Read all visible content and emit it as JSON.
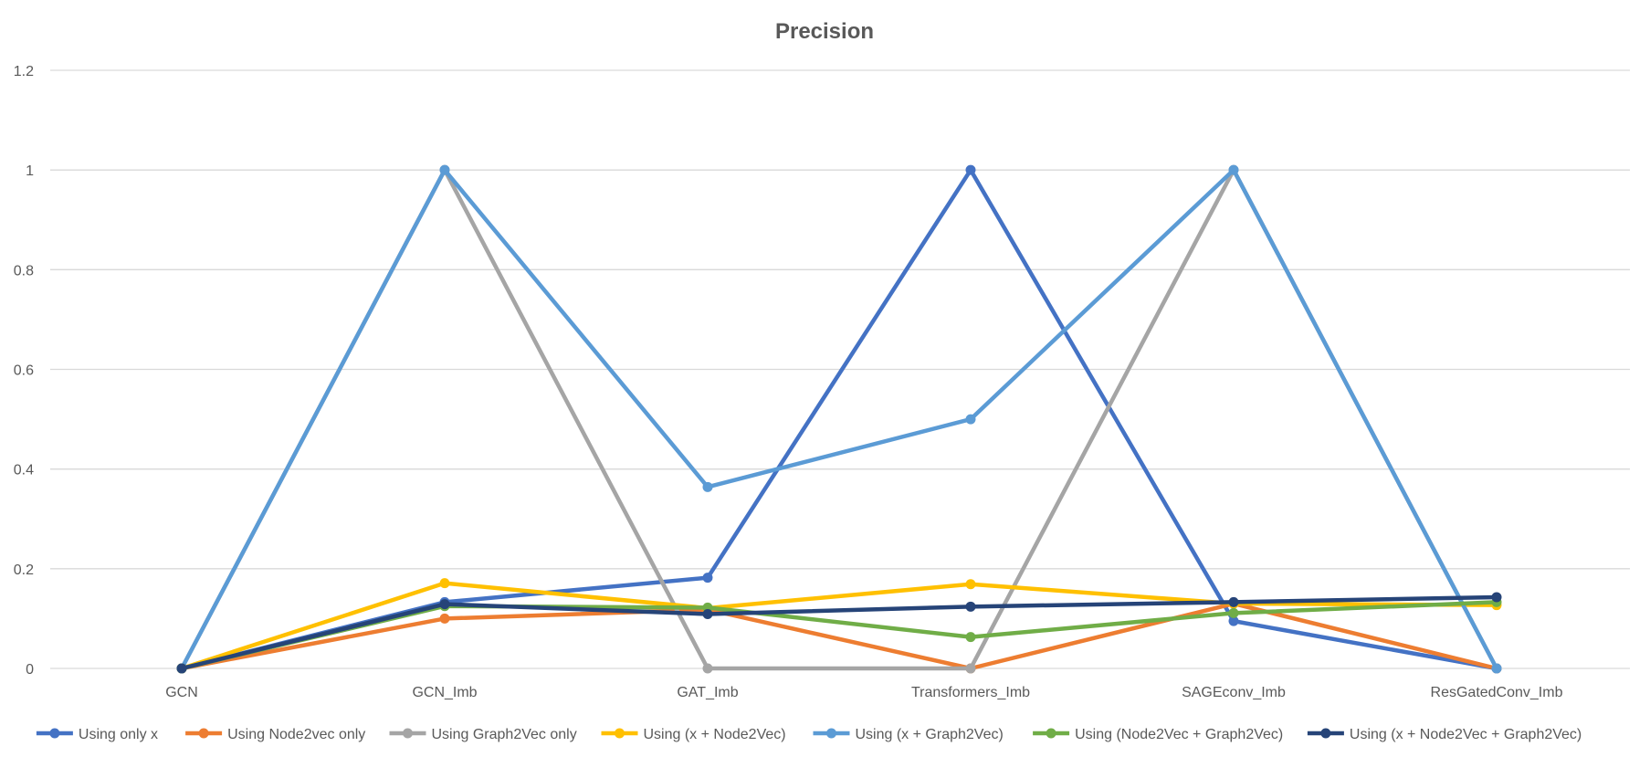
{
  "chart_data": {
    "type": "line",
    "title": "Precision",
    "xlabel": "",
    "ylabel": "",
    "categories": [
      "GCN",
      "GCN_Imb",
      "GAT_Imb",
      "Transformers_Imb",
      "SAGEconv_Imb",
      "ResGatedConv_Imb"
    ],
    "ylim": [
      0,
      1.2
    ],
    "yticks": [
      0,
      0.2,
      0.4,
      0.6,
      0.8,
      1,
      1.2
    ],
    "ytick_labels": [
      "0",
      "0.2",
      "0.4",
      "0.6",
      "0.8",
      "1",
      "1.2"
    ],
    "grid": true,
    "legend_position": "bottom",
    "series": [
      {
        "name": "Using only x",
        "color": "#4472C4",
        "values": [
          0,
          0.133,
          0.182,
          1,
          0.095,
          0
        ]
      },
      {
        "name": "Using Node2vec only",
        "color": "#ED7D31",
        "values": [
          0,
          0.1,
          0.118,
          0,
          0.13,
          0
        ]
      },
      {
        "name": "Using Graph2Vec only",
        "color": "#A5A5A5",
        "values": [
          0,
          1,
          0,
          0,
          1,
          0
        ]
      },
      {
        "name": "Using (x + Node2Vec)",
        "color": "#FFC000",
        "values": [
          0,
          0.171,
          0.121,
          0.169,
          0.13,
          0.127
        ]
      },
      {
        "name": "Using (x + Graph2Vec)",
        "color": "#5B9BD5",
        "values": [
          0,
          1,
          0.364,
          0.5,
          1,
          0
        ]
      },
      {
        "name": "Using (Node2Vec + Graph2Vec)",
        "color": "#70AD47",
        "values": [
          0,
          0.125,
          0.122,
          0.063,
          0.111,
          0.133
        ]
      },
      {
        "name": "Using (x + Node2Vec + Graph2Vec)",
        "color": "#264478",
        "values": [
          0,
          0.129,
          0.109,
          0.124,
          0.133,
          0.143
        ]
      }
    ]
  }
}
